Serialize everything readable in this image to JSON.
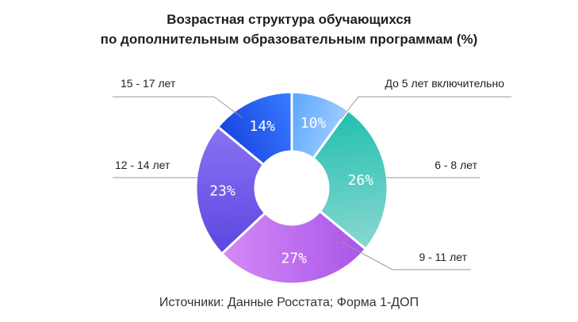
{
  "chart_data": {
    "type": "pie",
    "title": "Возрастная структура обучающихся",
    "subtitle": "по дополнительным образовательным программам (%)",
    "categories": [
      "До 5 лет включительно",
      "6 - 8 лет",
      "9 - 11 лет",
      "12 - 14 лет",
      "15 - 17 лет"
    ],
    "values": [
      10,
      26,
      27,
      23,
      14
    ],
    "value_labels": [
      "10%",
      "26%",
      "27%",
      "23%",
      "14%"
    ],
    "colors": [
      [
        "#5aa6ff",
        "#9fcbff"
      ],
      [
        "#22bfae",
        "#8ad8d2"
      ],
      [
        "#a855e8",
        "#d58af6"
      ],
      [
        "#5b47e0",
        "#8b72f2"
      ],
      [
        "#1845e0",
        "#3a7cff"
      ]
    ],
    "donut": true,
    "legend": "callout-labels"
  },
  "source": "Источники: Данные Росстата; Форма 1-ДОП"
}
